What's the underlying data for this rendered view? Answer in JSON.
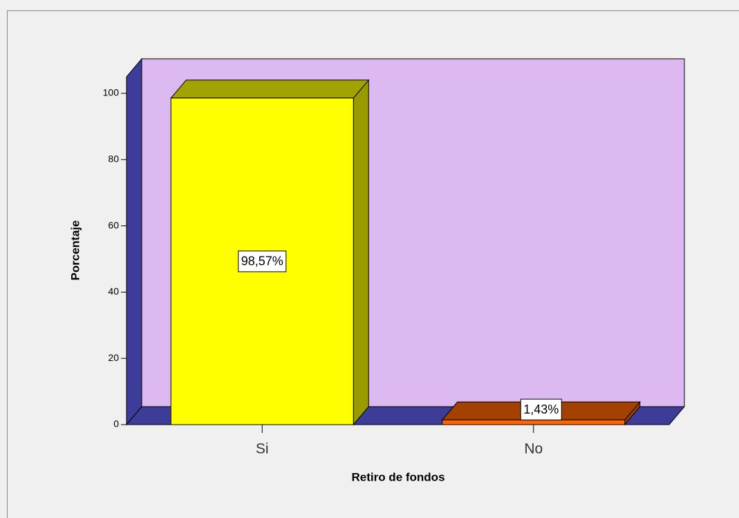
{
  "chart_data": {
    "type": "bar3d",
    "categories": [
      "Si",
      "No"
    ],
    "values": [
      98.57,
      1.43
    ],
    "value_labels": [
      "98,57%",
      "1,43%"
    ],
    "colors": [
      "#ffff00",
      "#ff6600"
    ],
    "ylim": [
      0,
      105
    ],
    "yticks": [
      0,
      20,
      40,
      60,
      80,
      100
    ],
    "ylabel": "Porcentaje",
    "xlabel": "Retiro de fondos",
    "wall_color": "#ddb9f2",
    "floor_color": "#3d3d99"
  }
}
